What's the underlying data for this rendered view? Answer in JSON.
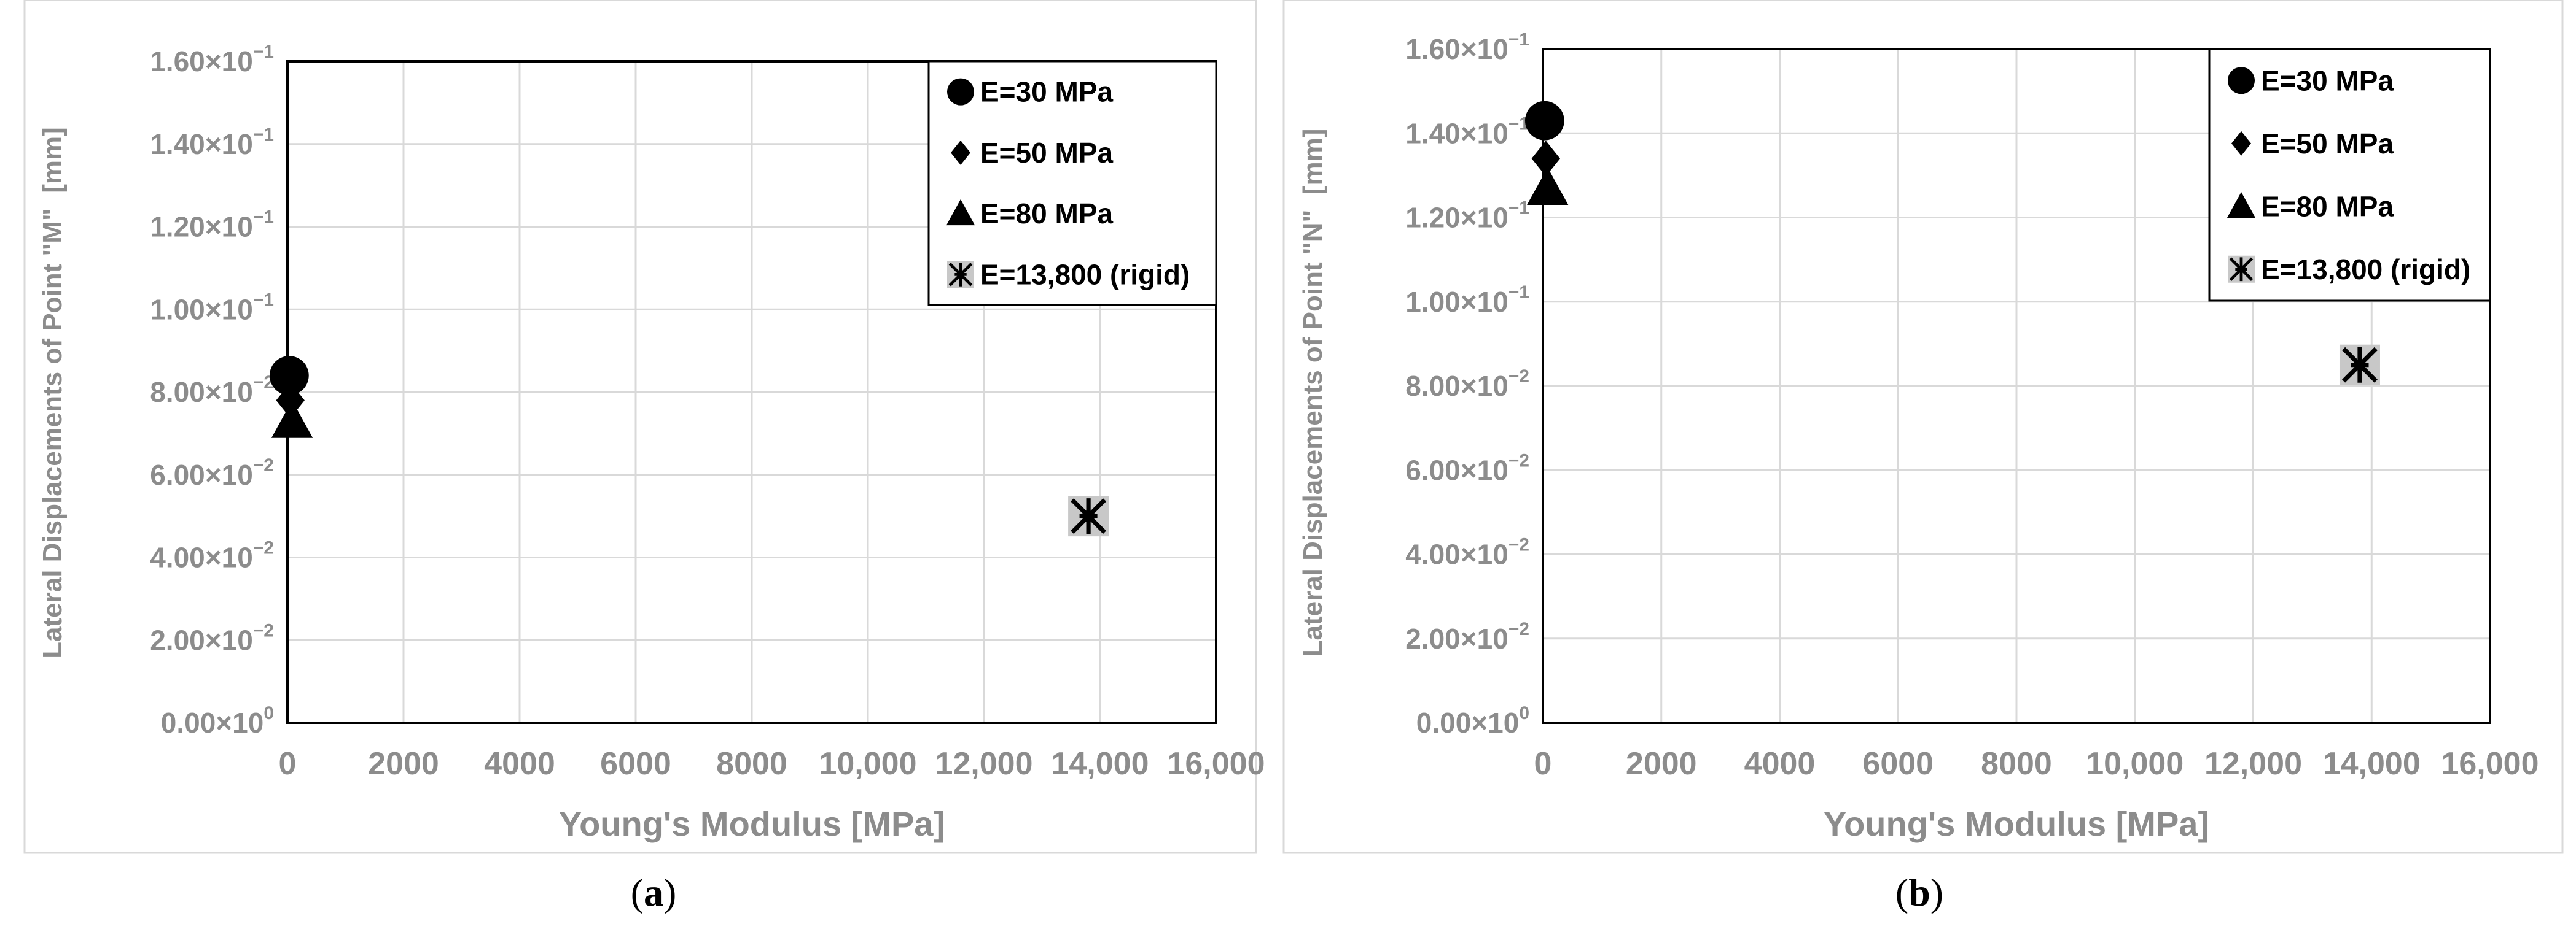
{
  "chart_data": [
    {
      "type": "scatter",
      "panel_label": "a",
      "xlabel": "Young's Modulus [MPa]",
      "ylabel": "Lateral Displacements of Point \"M\"  [mm]",
      "xlim": [
        0,
        16000
      ],
      "ylim": [
        0,
        0.16
      ],
      "x_ticks": [
        0,
        2000,
        4000,
        6000,
        8000,
        10000,
        12000,
        14000,
        16000
      ],
      "x_tick_labels": [
        "0",
        "2000",
        "4000",
        "6000",
        "8000",
        "10,000",
        "12,000",
        "14,000",
        "16,000"
      ],
      "y_ticks": [
        0,
        0.02,
        0.04,
        0.06,
        0.08,
        0.1,
        0.12,
        0.14,
        0.16
      ],
      "y_tick_labels": [
        {
          "mantissa": "0.00×10",
          "exponent": "0"
        },
        {
          "mantissa": "2.00×10",
          "exponent": "−2"
        },
        {
          "mantissa": "4.00×10",
          "exponent": "−2"
        },
        {
          "mantissa": "6.00×10",
          "exponent": "−2"
        },
        {
          "mantissa": "8.00×10",
          "exponent": "−2"
        },
        {
          "mantissa": "1.00×10",
          "exponent": "−1"
        },
        {
          "mantissa": "1.20×10",
          "exponent": "−1"
        },
        {
          "mantissa": "1.40×10",
          "exponent": "−1"
        },
        {
          "mantissa": "1.60×10",
          "exponent": "−1"
        }
      ],
      "grid": true,
      "legend_position": "top-right",
      "series": [
        {
          "name": "E=30 MPa",
          "marker": "circle",
          "x": [
            30
          ],
          "y": [
            0.084
          ]
        },
        {
          "name": "E=50 MPa",
          "marker": "diamond",
          "x": [
            50
          ],
          "y": [
            0.078
          ]
        },
        {
          "name": "E=80 MPa",
          "marker": "triangle",
          "x": [
            80
          ],
          "y": [
            0.073
          ]
        },
        {
          "name": "E=13,800 (rigid)",
          "marker": "asterisk",
          "x": [
            13800
          ],
          "y": [
            0.05
          ]
        }
      ]
    },
    {
      "type": "scatter",
      "panel_label": "b",
      "xlabel": "Young's Modulus [MPa]",
      "ylabel": "Lateral Displacements of Point \"N\"  [mm]",
      "xlim": [
        0,
        16000
      ],
      "ylim": [
        0,
        0.16
      ],
      "x_ticks": [
        0,
        2000,
        4000,
        6000,
        8000,
        10000,
        12000,
        14000,
        16000
      ],
      "x_tick_labels": [
        "0",
        "2000",
        "4000",
        "6000",
        "8000",
        "10,000",
        "12,000",
        "14,000",
        "16,000"
      ],
      "y_ticks": [
        0,
        0.02,
        0.04,
        0.06,
        0.08,
        0.1,
        0.12,
        0.14,
        0.16
      ],
      "y_tick_labels": [
        {
          "mantissa": "0.00×10",
          "exponent": "0"
        },
        {
          "mantissa": "2.00×10",
          "exponent": "−2"
        },
        {
          "mantissa": "4.00×10",
          "exponent": "−2"
        },
        {
          "mantissa": "6.00×10",
          "exponent": "−2"
        },
        {
          "mantissa": "8.00×10",
          "exponent": "−2"
        },
        {
          "mantissa": "1.00×10",
          "exponent": "−1"
        },
        {
          "mantissa": "1.20×10",
          "exponent": "−1"
        },
        {
          "mantissa": "1.40×10",
          "exponent": "−1"
        },
        {
          "mantissa": "1.60×10",
          "exponent": "−1"
        }
      ],
      "grid": true,
      "legend_position": "top-right",
      "series": [
        {
          "name": "E=30 MPa",
          "marker": "circle",
          "x": [
            30
          ],
          "y": [
            0.143
          ]
        },
        {
          "name": "E=50 MPa",
          "marker": "diamond",
          "x": [
            50
          ],
          "y": [
            0.134
          ]
        },
        {
          "name": "E=80 MPa",
          "marker": "triangle",
          "x": [
            80
          ],
          "y": [
            0.127
          ]
        },
        {
          "name": "E=13,800 (rigid)",
          "marker": "asterisk",
          "x": [
            13800
          ],
          "y": [
            0.085
          ]
        }
      ]
    }
  ],
  "colors": {
    "text_gray": "#8c8c8c",
    "grid": "#d9d9d9",
    "frame": "#000000",
    "marker": "#000000",
    "rigid_marker_bg": "#c8c8c8",
    "panel_border": "#d9d9d9"
  }
}
